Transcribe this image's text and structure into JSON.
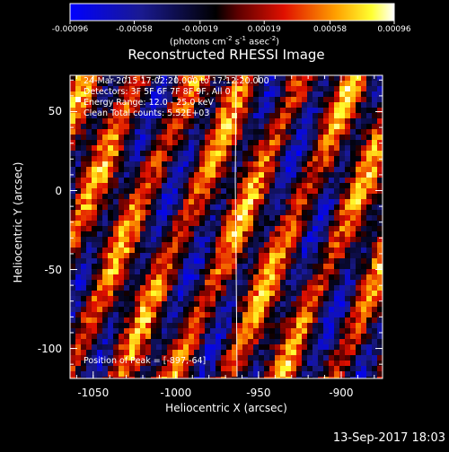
{
  "chart_data": {
    "type": "heatmap",
    "title": "Reconstructed RHESSI Image",
    "xlabel": "Heliocentric X (arcsec)",
    "ylabel": "Heliocentric Y (arcsec)",
    "xlim": [
      -1064,
      -875
    ],
    "ylim": [
      -119,
      73
    ],
    "xticks": [
      -1050,
      -1000,
      -950,
      -900
    ],
    "yticks": [
      50,
      0,
      -50,
      -100
    ],
    "colorbar": {
      "colormap": "blue-black-red-yellow-white",
      "range": [
        -0.00096,
        0.00096
      ],
      "tick_values": [
        -0.00096,
        -0.00058,
        -0.00019,
        0.00019,
        0.00058,
        0.00096
      ],
      "ticks": [
        "-0.00096",
        "-0.00058",
        "-0.00019",
        "0.00019",
        "0.00058",
        "0.00096"
      ],
      "units": "(photons cm-2 s-1 asec-2)"
    },
    "info_lines": [
      "24-Mar-2015 17:02:20.000 to 17:12:20.000",
      "Detectors: 3F 5F 6F 7F 8F 9F, All 0",
      "Energy Range: 12.0 - 25.0 keV",
      "Clean     Total counts: 5.52E+03"
    ],
    "position_of_peak": "Position of Peak = [-897,-64]",
    "peak_x": -897,
    "peak_y": -64,
    "pattern": "diagonal stripe pattern (grid modulation)",
    "limb_line": true
  },
  "footer": {
    "date": "13-Sep-2017 18:03"
  }
}
